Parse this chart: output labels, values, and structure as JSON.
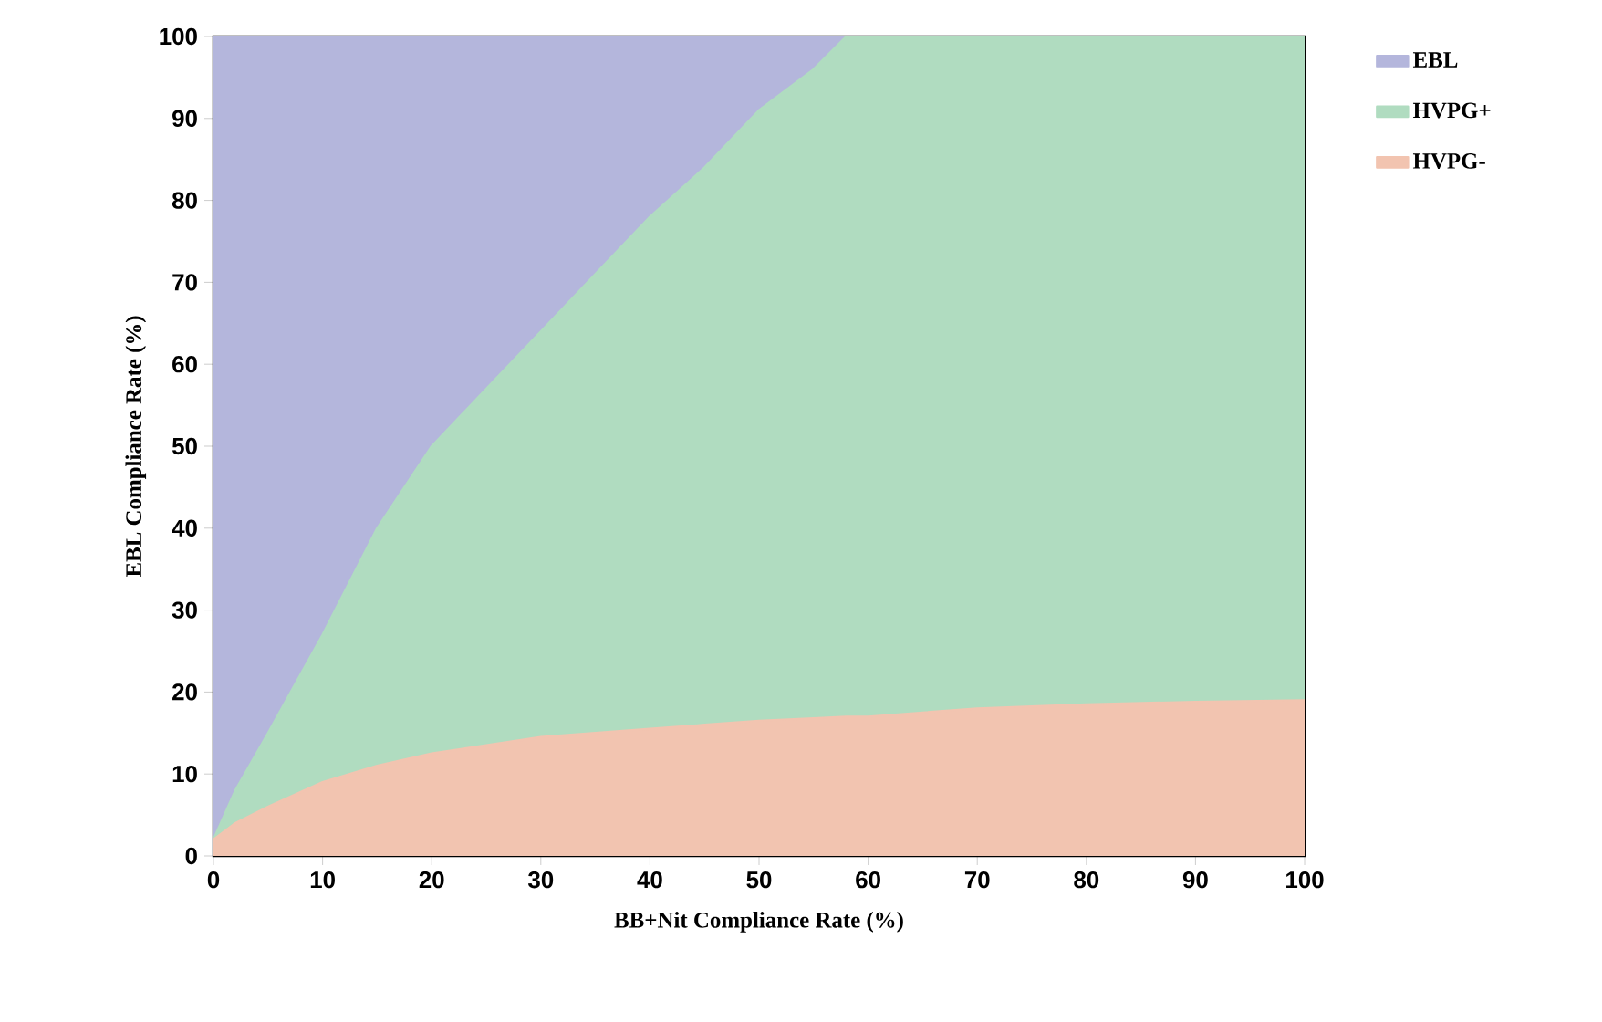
{
  "chart_data": {
    "type": "area",
    "stacked": true,
    "xlabel": "BB+Nit Compliance Rate (%)",
    "ylabel": "EBL Compliance Rate (%)",
    "x": [
      0,
      2,
      5,
      10,
      15,
      20,
      25,
      30,
      35,
      40,
      45,
      50,
      55,
      58,
      60,
      70,
      80,
      90,
      100
    ],
    "series": [
      {
        "name": "HVPG-",
        "color": "#f2c4b0",
        "values": [
          2,
          4,
          6,
          9,
          11,
          12.5,
          13.5,
          14.5,
          15,
          15.5,
          16,
          16.5,
          16.8,
          17,
          17,
          18,
          18.5,
          18.8,
          19
        ]
      },
      {
        "name": "HVPG+",
        "color": "#b0dcc0",
        "values": [
          0,
          4,
          9,
          18,
          29,
          37.5,
          43.5,
          49.5,
          56,
          62.5,
          68,
          74.5,
          79.2,
          83,
          83,
          82,
          81.5,
          81.2,
          81
        ]
      },
      {
        "name": "EBL",
        "color": "#b4b6dc",
        "values": [
          98,
          92,
          85,
          73,
          60,
          50,
          43,
          36,
          29,
          22,
          16,
          9,
          4,
          0,
          null,
          null,
          null,
          null,
          null
        ]
      }
    ],
    "xlim": [
      0,
      100
    ],
    "ylim": [
      0,
      100
    ],
    "xticks": [
      0,
      10,
      20,
      30,
      40,
      50,
      60,
      70,
      80,
      90,
      100
    ],
    "yticks": [
      0,
      10,
      20,
      30,
      40,
      50,
      60,
      70,
      80,
      90,
      100
    ],
    "legend": "right"
  }
}
